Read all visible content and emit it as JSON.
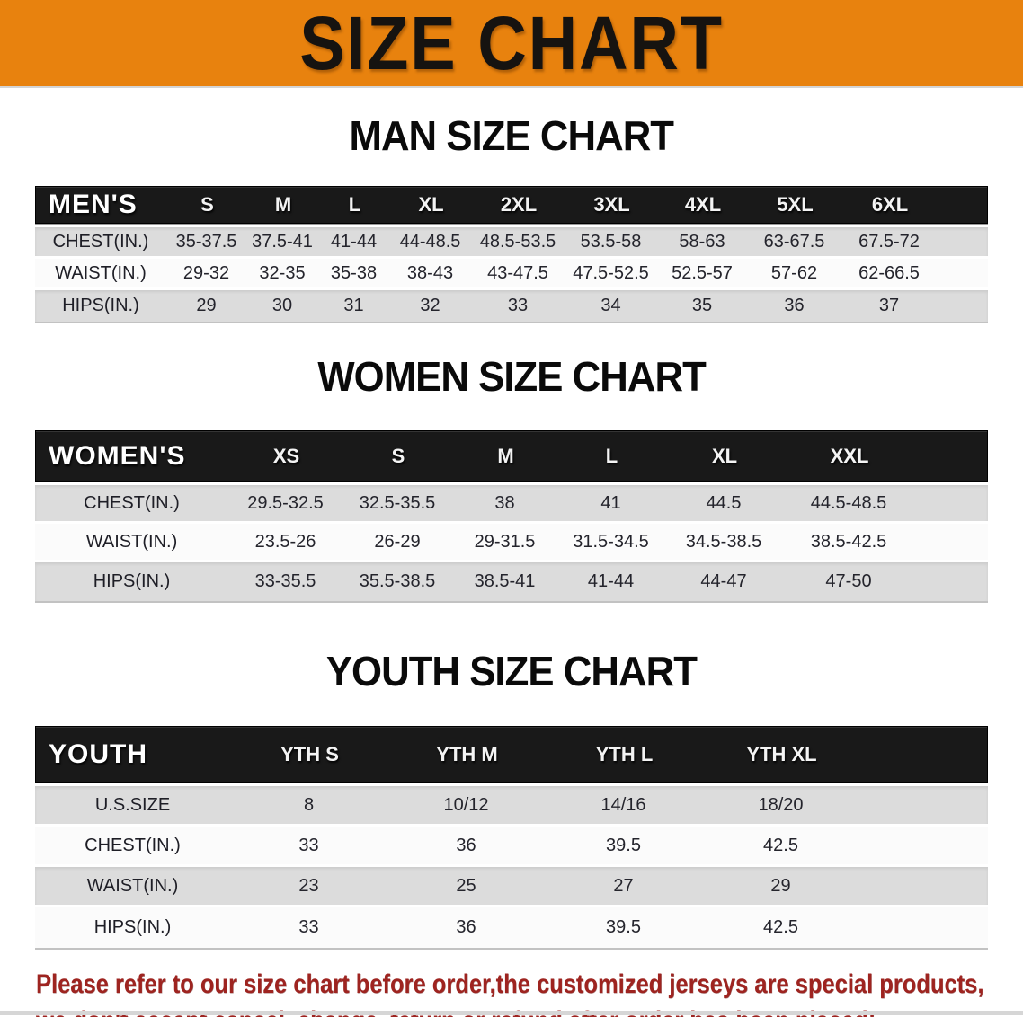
{
  "banner": {
    "title": "SIZE CHART"
  },
  "colors": {
    "banner_orange": "#E8820E",
    "header_black": "#191919",
    "row_gray": "#DCDCDC",
    "row_white": "#FBFBFB",
    "disclaimer_red": "#9E2420"
  },
  "sections": [
    {
      "heading": "MAN SIZE CHART",
      "table": {
        "header_label": "MEN'S",
        "columns": [
          "S",
          "M",
          "L",
          "XL",
          "2XL",
          "3XL",
          "4XL",
          "5XL",
          "6XL"
        ],
        "rows": [
          {
            "label": "CHEST(IN.)",
            "values": [
              "35-37.5",
              "37.5-41",
              "41-44",
              "44-48.5",
              "48.5-53.5",
              "53.5-58",
              "58-63",
              "63-67.5",
              "67.5-72"
            ]
          },
          {
            "label": "WAIST(IN.)",
            "values": [
              "29-32",
              "32-35",
              "35-38",
              "38-43",
              "43-47.5",
              "47.5-52.5",
              "52.5-57",
              "57-62",
              "62-66.5"
            ]
          },
          {
            "label": "HIPS(IN.)",
            "values": [
              "29",
              "30",
              "31",
              "32",
              "33",
              "34",
              "35",
              "36",
              "37"
            ]
          }
        ]
      }
    },
    {
      "heading": "WOMEN SIZE CHART",
      "table": {
        "header_label": "WOMEN'S",
        "columns": [
          "XS",
          "S",
          "M",
          "L",
          "XL",
          "XXL"
        ],
        "rows": [
          {
            "label": "CHEST(IN.)",
            "values": [
              "29.5-32.5",
              "32.5-35.5",
              "38",
              "41",
              "44.5",
              "44.5-48.5"
            ]
          },
          {
            "label": "WAIST(IN.)",
            "values": [
              "23.5-26",
              "26-29",
              "29-31.5",
              "31.5-34.5",
              "34.5-38.5",
              "38.5-42.5"
            ]
          },
          {
            "label": "HIPS(IN.)",
            "values": [
              "33-35.5",
              "35.5-38.5",
              "38.5-41",
              "41-44",
              "44-47",
              "47-50"
            ]
          }
        ]
      }
    },
    {
      "heading": "YOUTH SIZE CHART",
      "table": {
        "header_label": "YOUTH",
        "columns": [
          "YTH S",
          "YTH M",
          "YTH L",
          "YTH XL"
        ],
        "rows": [
          {
            "label": "U.S.SIZE",
            "values": [
              "8",
              "10/12",
              "14/16",
              "18/20"
            ]
          },
          {
            "label": "CHEST(IN.)",
            "values": [
              "33",
              "36",
              "39.5",
              "42.5"
            ]
          },
          {
            "label": "WAIST(IN.)",
            "values": [
              "23",
              "25",
              "27",
              "29"
            ]
          },
          {
            "label": "HIPS(IN.)",
            "values": [
              "33",
              "36",
              "39.5",
              "42.5"
            ]
          }
        ]
      }
    }
  ],
  "disclaimer": {
    "line1": "Please refer to our size chart before order,the customized jerseys are special products,",
    "line2": "we don't accept cancel, change, teturn or refund after order has been placed!"
  }
}
